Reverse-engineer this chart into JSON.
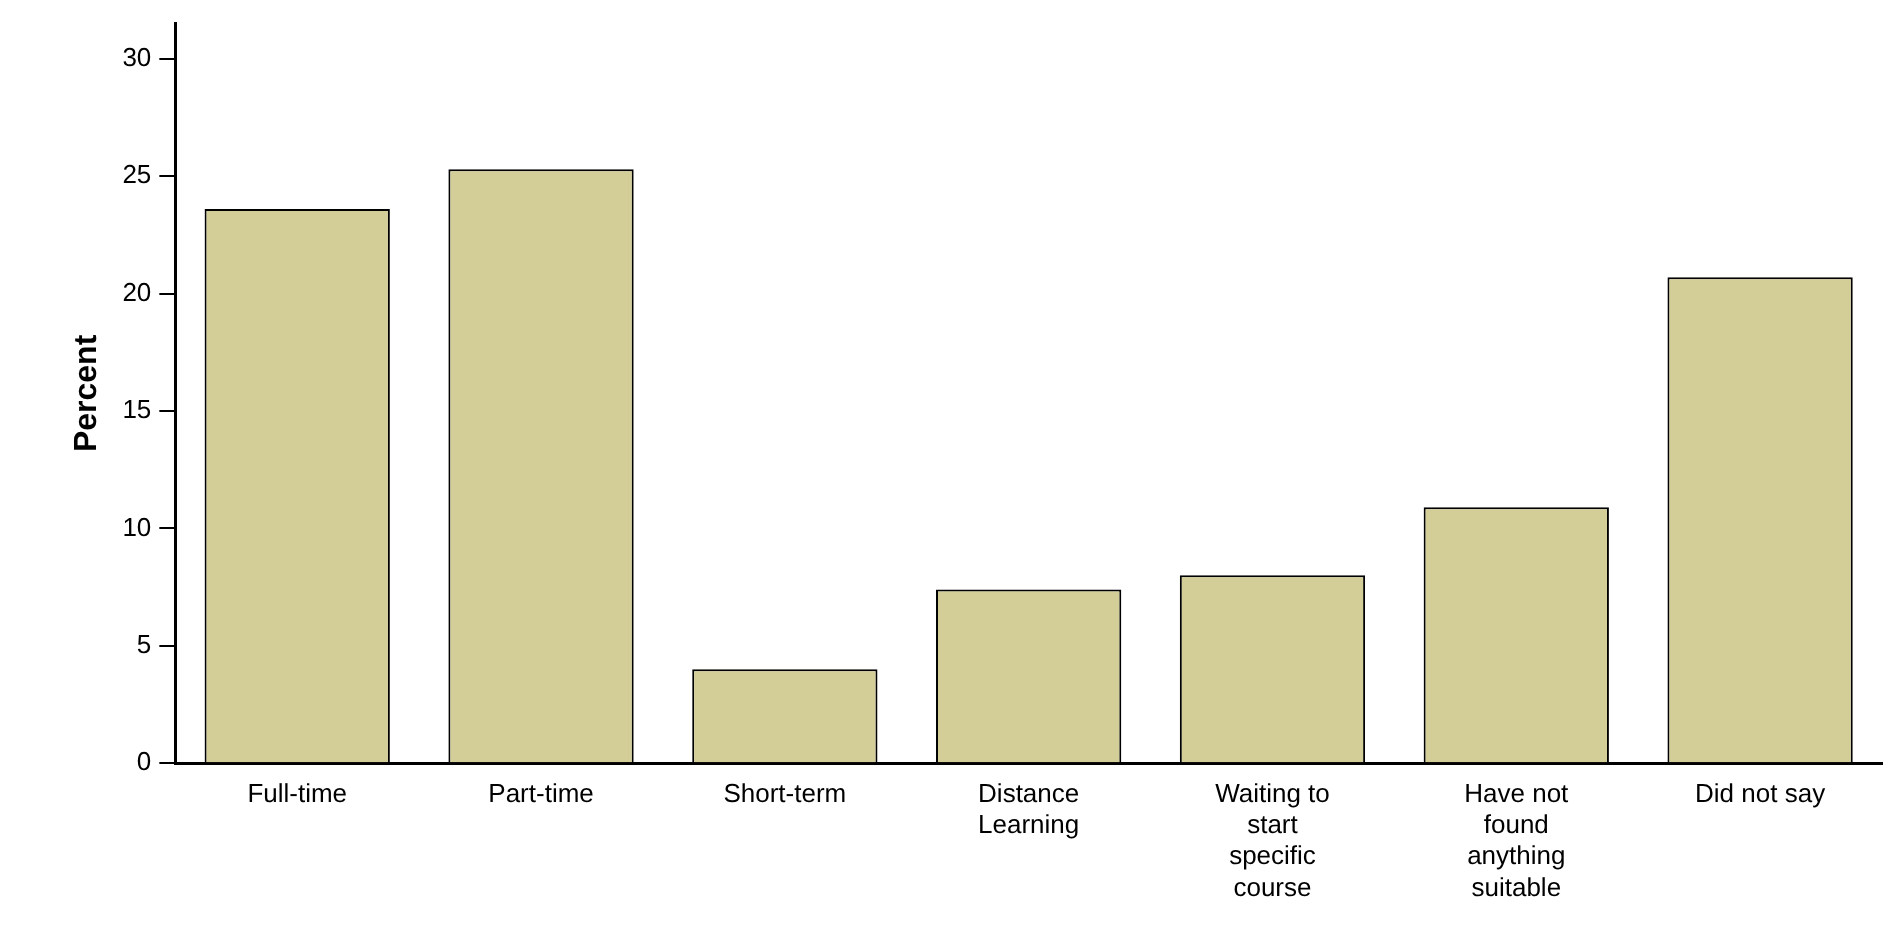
{
  "chart_data": {
    "type": "bar",
    "ylabel": "Percent",
    "categories": [
      "Full-time",
      "Part-time",
      "Short-term",
      "Distance Learning",
      "Waiting to start specific course",
      "Have not found anything suitable",
      "Did not say"
    ],
    "values": [
      23.6,
      25.3,
      4.0,
      7.4,
      8.0,
      10.9,
      20.7
    ],
    "color": "#d3cd97",
    "ylim": [
      0,
      31.5
    ],
    "yticks": [
      0,
      5,
      10,
      15,
      20,
      25,
      30
    ],
    "grid": false,
    "legend": false
  }
}
